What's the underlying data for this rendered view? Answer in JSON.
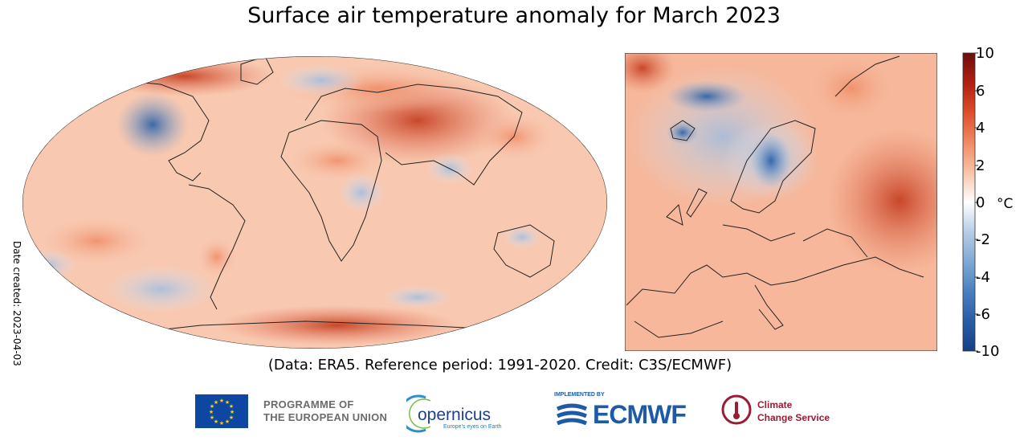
{
  "title": "Surface air temperature anomaly for March 2023",
  "date_created": "Date created: 2023-04-03",
  "credit": "(Data: ERA5.  Reference period: 1991-2020.  Credit: C3S/ECMWF)",
  "colorbar": {
    "ticks": [
      "10",
      "6",
      "4",
      "2",
      "0",
      "-2",
      "-4",
      "-6",
      "-10"
    ],
    "unit": "°C",
    "colors": [
      "#6b0d0d",
      "#b21f11",
      "#dd4e2a",
      "#f08a63",
      "#f8c3a6",
      "#fbe8de",
      "#ffffff",
      "#e2ebf5",
      "#b7cde6",
      "#7ea9d4",
      "#4a7fbf",
      "#285da6",
      "#163f83"
    ]
  },
  "logos": {
    "eu": [
      "PROGRAMME OF",
      "THE EUROPEAN UNION"
    ],
    "copernicus": "opernicus",
    "copernicus_tag": "Europe's eyes on Earth",
    "ecmwf_implemented": "IMPLEMENTED BY",
    "ecmwf": "ECMWF",
    "c3s": [
      "Climate",
      "Change Service"
    ]
  },
  "colors": {
    "warm_strong": "#c33a1c",
    "warm": "#f0a27e",
    "warm_light": "#fad8c6",
    "cold": "#7ea9d4",
    "cold_strong": "#285da6"
  }
}
